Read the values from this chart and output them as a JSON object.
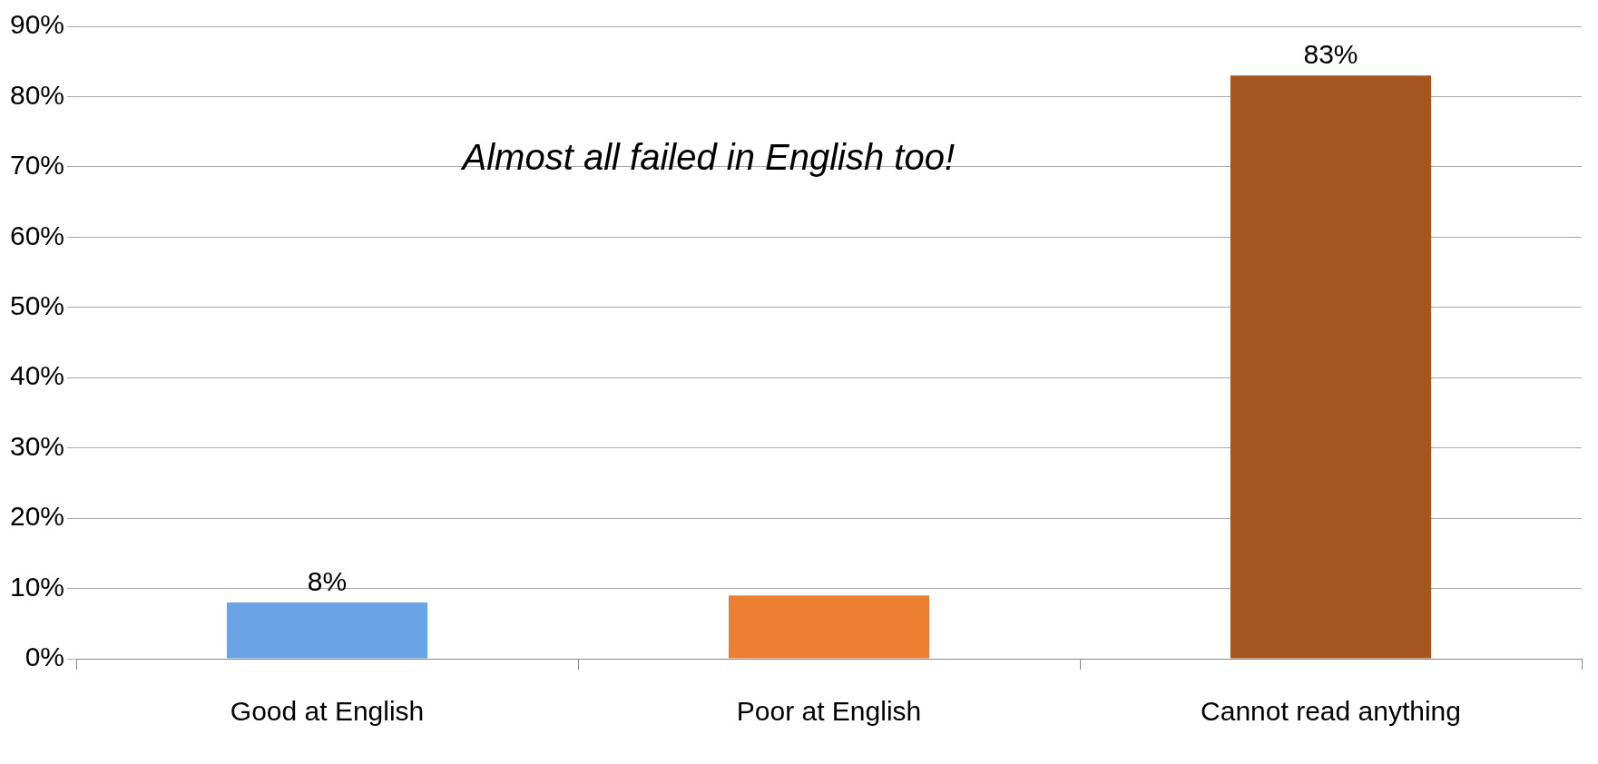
{
  "chart_data": {
    "type": "bar",
    "categories": [
      "Good at English",
      "Poor at English",
      "Cannot read anything"
    ],
    "values": [
      8,
      9,
      83
    ],
    "colors": [
      "#6aa3e6",
      "#ed7f32",
      "#a5561f"
    ],
    "value_labels": [
      "8%",
      null,
      "83%"
    ],
    "ylim": [
      0,
      90
    ],
    "yticks": [
      {
        "value": 0,
        "label": "0%"
      },
      {
        "value": 10,
        "label": "10%"
      },
      {
        "value": 20,
        "label": "20%"
      },
      {
        "value": 30,
        "label": "30%"
      },
      {
        "value": 40,
        "label": "40%"
      },
      {
        "value": 50,
        "label": "50%"
      },
      {
        "value": 60,
        "label": "60%"
      },
      {
        "value": 70,
        "label": "70%"
      },
      {
        "value": 80,
        "label": "80%"
      },
      {
        "value": 90,
        "label": "90%"
      }
    ],
    "grid": "y",
    "legend": false,
    "annotations": [
      "Almost all failed in English too!"
    ]
  }
}
